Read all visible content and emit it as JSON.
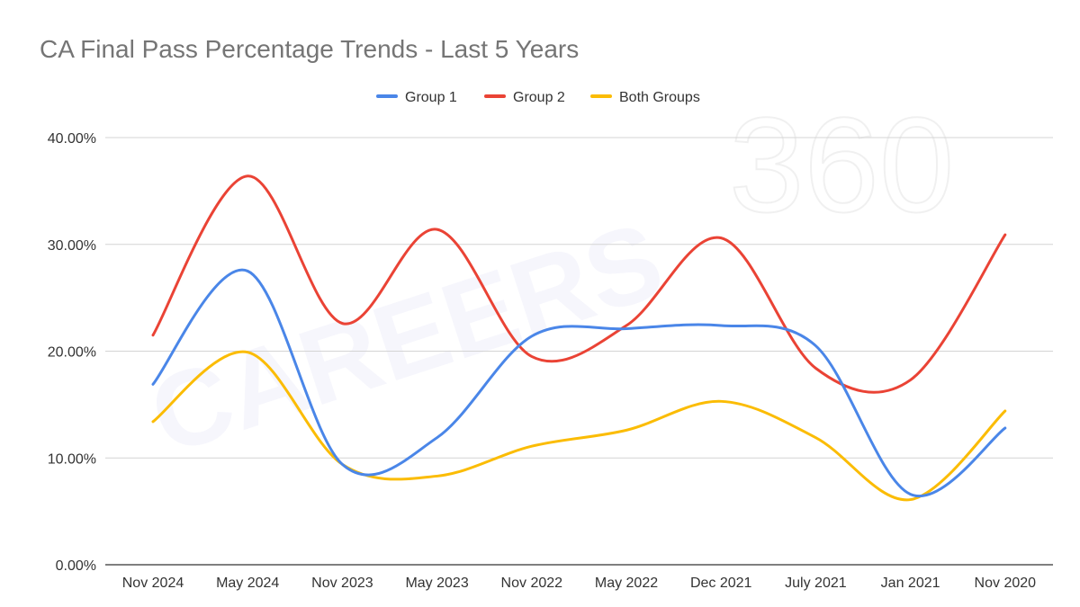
{
  "chart_data": {
    "type": "line",
    "title": "CA Final Pass Percentage Trends - Last 5 Years",
    "categories": [
      "Nov 2024",
      "May 2024",
      "Nov 2023",
      "May 2023",
      "Nov 2022",
      "May 2022",
      "Dec 2021",
      "July 2021",
      "Jan 2021",
      "Nov 2020"
    ],
    "series": [
      {
        "name": "Group 1",
        "color": "#4a86e8",
        "values": [
          16.9,
          27.5,
          9.4,
          11.9,
          21.4,
          22.1,
          22.4,
          20.5,
          6.6,
          12.8
        ]
      },
      {
        "name": "Group 2",
        "color": "#ea4335",
        "values": [
          21.5,
          36.4,
          22.6,
          31.4,
          19.5,
          22.4,
          30.6,
          18.4,
          17.3,
          30.9
        ]
      },
      {
        "name": "Both Groups",
        "color": "#fbbc04",
        "values": [
          13.4,
          19.9,
          9.4,
          8.3,
          11.1,
          12.6,
          15.3,
          11.9,
          6.1,
          14.4
        ]
      }
    ],
    "y_ticks": [
      "0.00%",
      "10.00%",
      "20.00%",
      "30.00%",
      "40.00%"
    ],
    "ylim": [
      0,
      40
    ],
    "grid": true,
    "legend_position": "top-center",
    "xlabel": "",
    "ylabel": ""
  }
}
